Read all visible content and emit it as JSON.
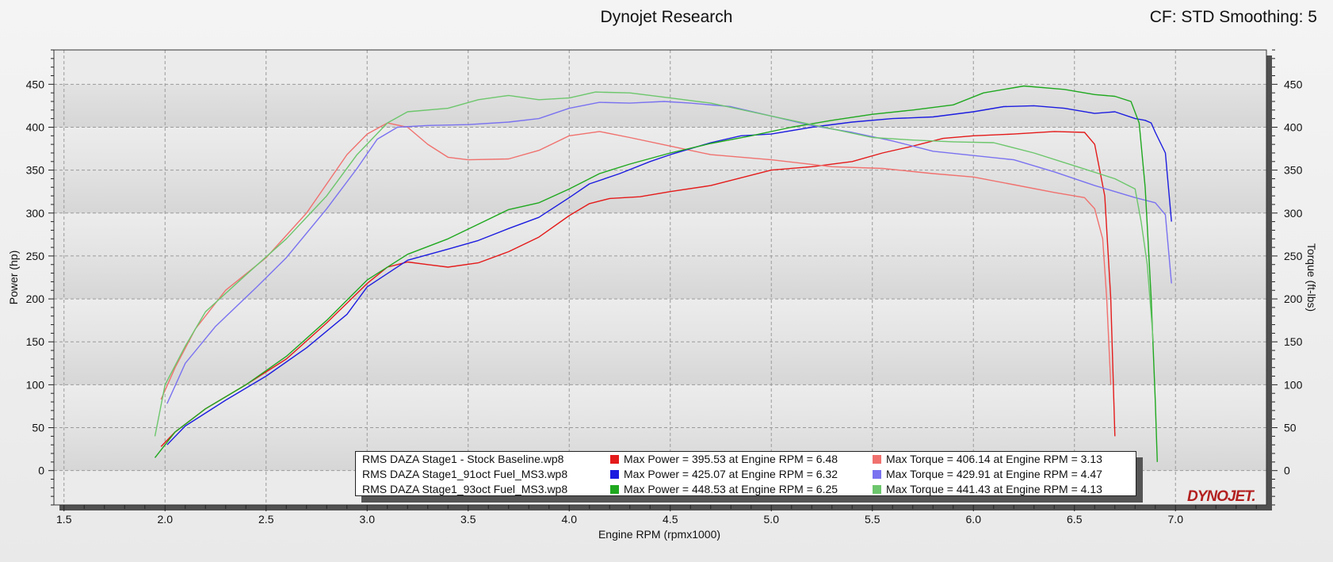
{
  "header": {
    "title": "Dynojet Research",
    "cf_label": "CF: STD Smoothing: 5"
  },
  "logo": "DYNOJET.",
  "colors": {
    "stock_power": "#e41a1a",
    "stock_torque": "#f0716e",
    "oct91_power": "#1c1ce0",
    "oct91_torque": "#7a72f0",
    "oct93_power": "#1fa81f",
    "oct93_torque": "#6cc66c"
  },
  "legend": [
    {
      "file": "RMS DAZA Stage1 - Stock Baseline.wp8",
      "power_text": "Max Power = 395.53 at Engine RPM = 6.48",
      "torque_text": "Max Torque = 406.14 at Engine RPM = 3.13",
      "power_color": "#e41a1a",
      "torque_color": "#f0716e"
    },
    {
      "file": "RMS DAZA Stage1_91oct Fuel_MS3.wp8",
      "power_text": "Max Power = 425.07 at Engine RPM = 6.32",
      "torque_text": "Max Torque = 429.91 at Engine RPM = 4.47",
      "power_color": "#1c1ce0",
      "torque_color": "#7a72f0"
    },
    {
      "file": "RMS DAZA Stage1_93oct Fuel_MS3.wp8",
      "power_text": "Max Power = 448.53 at Engine RPM = 6.25",
      "torque_text": "Max Torque = 441.43 at Engine RPM = 4.13",
      "power_color": "#1fa81f",
      "torque_color": "#6cc66c"
    }
  ],
  "chart_data": {
    "type": "line",
    "xlabel": "Engine RPM (rpmx1000)",
    "ylabel_left": "Power (hp)",
    "ylabel_right": "Torque (ft-lbs)",
    "xlim": [
      1.45,
      7.45
    ],
    "ylim": [
      -40,
      490
    ],
    "x_ticks": [
      1.5,
      2.0,
      2.5,
      3.0,
      3.5,
      4.0,
      4.5,
      5.0,
      5.5,
      6.0,
      6.5,
      7.0
    ],
    "x_tick_labels": [
      "1.5",
      "2.0",
      "2.5",
      "3.0",
      "3.5",
      "4.0",
      "4.5",
      "5.0",
      "5.5",
      "6.0",
      "6.5",
      "7.0"
    ],
    "y_ticks": [
      0,
      50,
      100,
      150,
      200,
      250,
      300,
      350,
      400,
      450
    ],
    "y_tick_labels": [
      "0",
      "50",
      "100",
      "150",
      "200",
      "250",
      "300",
      "350",
      "400",
      "450"
    ],
    "grid": true,
    "legend_position": "bottom-center",
    "series": [
      {
        "name": "RMS DAZA Stage1 - Stock Baseline.wp8",
        "measure": "Power",
        "color": "#e41a1a",
        "points": [
          [
            1.98,
            28
          ],
          [
            2.05,
            45
          ],
          [
            2.2,
            72
          ],
          [
            2.4,
            100
          ],
          [
            2.6,
            130
          ],
          [
            2.8,
            172
          ],
          [
            3.0,
            218
          ],
          [
            3.1,
            237
          ],
          [
            3.2,
            243
          ],
          [
            3.3,
            240
          ],
          [
            3.4,
            237
          ],
          [
            3.55,
            242
          ],
          [
            3.7,
            255
          ],
          [
            3.85,
            272
          ],
          [
            4.0,
            297
          ],
          [
            4.1,
            311
          ],
          [
            4.2,
            317
          ],
          [
            4.35,
            319
          ],
          [
            4.5,
            325
          ],
          [
            4.7,
            332
          ],
          [
            4.9,
            344
          ],
          [
            5.0,
            350
          ],
          [
            5.2,
            354
          ],
          [
            5.4,
            360
          ],
          [
            5.55,
            370
          ],
          [
            5.7,
            378
          ],
          [
            5.85,
            387
          ],
          [
            6.0,
            390
          ],
          [
            6.2,
            392
          ],
          [
            6.4,
            395
          ],
          [
            6.55,
            394
          ],
          [
            6.6,
            380
          ],
          [
            6.65,
            320
          ],
          [
            6.68,
            200
          ],
          [
            6.7,
            40
          ]
        ]
      },
      {
        "name": "RMS DAZA Stage1 - Stock Baseline.wp8",
        "measure": "Torque",
        "color": "#f0716e",
        "points": [
          [
            1.98,
            83
          ],
          [
            2.05,
            120
          ],
          [
            2.15,
            165
          ],
          [
            2.3,
            210
          ],
          [
            2.5,
            248
          ],
          [
            2.7,
            300
          ],
          [
            2.9,
            368
          ],
          [
            3.0,
            392
          ],
          [
            3.1,
            405
          ],
          [
            3.2,
            400
          ],
          [
            3.3,
            380
          ],
          [
            3.4,
            365
          ],
          [
            3.5,
            362
          ],
          [
            3.7,
            363
          ],
          [
            3.85,
            373
          ],
          [
            4.0,
            390
          ],
          [
            4.15,
            395
          ],
          [
            4.3,
            388
          ],
          [
            4.5,
            378
          ],
          [
            4.7,
            368
          ],
          [
            5.0,
            362
          ],
          [
            5.3,
            354
          ],
          [
            5.55,
            352
          ],
          [
            5.8,
            346
          ],
          [
            6.0,
            342
          ],
          [
            6.2,
            333
          ],
          [
            6.4,
            324
          ],
          [
            6.55,
            318
          ],
          [
            6.6,
            305
          ],
          [
            6.64,
            270
          ],
          [
            6.66,
            200
          ],
          [
            6.68,
            100
          ]
        ]
      },
      {
        "name": "RMS DAZA Stage1_91oct Fuel_MS3.wp8",
        "measure": "Power",
        "color": "#1c1ce0",
        "points": [
          [
            2.01,
            30
          ],
          [
            2.1,
            52
          ],
          [
            2.3,
            82
          ],
          [
            2.5,
            110
          ],
          [
            2.7,
            143
          ],
          [
            2.9,
            182
          ],
          [
            3.0,
            214
          ],
          [
            3.2,
            245
          ],
          [
            3.4,
            258
          ],
          [
            3.55,
            268
          ],
          [
            3.7,
            282
          ],
          [
            3.85,
            295
          ],
          [
            4.0,
            318
          ],
          [
            4.1,
            334
          ],
          [
            4.25,
            346
          ],
          [
            4.4,
            360
          ],
          [
            4.5,
            368
          ],
          [
            4.7,
            382
          ],
          [
            4.85,
            390
          ],
          [
            5.0,
            392
          ],
          [
            5.2,
            400
          ],
          [
            5.4,
            406
          ],
          [
            5.6,
            410
          ],
          [
            5.8,
            412
          ],
          [
            6.0,
            418
          ],
          [
            6.15,
            424
          ],
          [
            6.3,
            425
          ],
          [
            6.45,
            422
          ],
          [
            6.6,
            416
          ],
          [
            6.7,
            418
          ],
          [
            6.8,
            410
          ],
          [
            6.85,
            408
          ],
          [
            6.88,
            405
          ],
          [
            6.9,
            394
          ],
          [
            6.95,
            370
          ],
          [
            6.98,
            290
          ]
        ]
      },
      {
        "name": "RMS DAZA Stage1_91oct Fuel_MS3.wp8",
        "measure": "Torque",
        "color": "#7a72f0",
        "points": [
          [
            2.01,
            78
          ],
          [
            2.1,
            125
          ],
          [
            2.25,
            168
          ],
          [
            2.45,
            213
          ],
          [
            2.6,
            248
          ],
          [
            2.8,
            305
          ],
          [
            2.95,
            352
          ],
          [
            3.05,
            386
          ],
          [
            3.15,
            400
          ],
          [
            3.3,
            402
          ],
          [
            3.5,
            403
          ],
          [
            3.7,
            406
          ],
          [
            3.85,
            410
          ],
          [
            4.0,
            422
          ],
          [
            4.15,
            429
          ],
          [
            4.3,
            428
          ],
          [
            4.47,
            430
          ],
          [
            4.6,
            428
          ],
          [
            4.8,
            424
          ],
          [
            5.0,
            413
          ],
          [
            5.2,
            402
          ],
          [
            5.4,
            394
          ],
          [
            5.6,
            384
          ],
          [
            5.8,
            372
          ],
          [
            6.0,
            367
          ],
          [
            6.2,
            362
          ],
          [
            6.4,
            348
          ],
          [
            6.6,
            332
          ],
          [
            6.8,
            318
          ],
          [
            6.9,
            312
          ],
          [
            6.95,
            298
          ],
          [
            6.98,
            218
          ]
        ]
      },
      {
        "name": "RMS DAZA Stage1_93oct Fuel_MS3.wp8",
        "measure": "Power",
        "color": "#1fa81f",
        "points": [
          [
            1.95,
            15
          ],
          [
            2.05,
            45
          ],
          [
            2.2,
            72
          ],
          [
            2.4,
            100
          ],
          [
            2.6,
            133
          ],
          [
            2.8,
            175
          ],
          [
            3.0,
            222
          ],
          [
            3.2,
            252
          ],
          [
            3.4,
            270
          ],
          [
            3.55,
            287
          ],
          [
            3.7,
            304
          ],
          [
            3.85,
            312
          ],
          [
            4.0,
            328
          ],
          [
            4.15,
            346
          ],
          [
            4.3,
            357
          ],
          [
            4.5,
            370
          ],
          [
            4.7,
            381
          ],
          [
            4.9,
            390
          ],
          [
            5.1,
            400
          ],
          [
            5.3,
            408
          ],
          [
            5.5,
            415
          ],
          [
            5.7,
            420
          ],
          [
            5.9,
            426
          ],
          [
            6.05,
            440
          ],
          [
            6.25,
            448
          ],
          [
            6.45,
            444
          ],
          [
            6.6,
            438
          ],
          [
            6.7,
            436
          ],
          [
            6.78,
            430
          ],
          [
            6.82,
            405
          ],
          [
            6.85,
            330
          ],
          [
            6.88,
            200
          ],
          [
            6.9,
            80
          ],
          [
            6.91,
            10
          ]
        ]
      },
      {
        "name": "RMS DAZA Stage1_93oct Fuel_MS3.wp8",
        "measure": "Torque",
        "color": "#6cc66c",
        "points": [
          [
            1.95,
            40
          ],
          [
            2.0,
            100
          ],
          [
            2.1,
            145
          ],
          [
            2.2,
            185
          ],
          [
            2.4,
            228
          ],
          [
            2.6,
            270
          ],
          [
            2.8,
            320
          ],
          [
            2.95,
            368
          ],
          [
            3.1,
            405
          ],
          [
            3.2,
            418
          ],
          [
            3.4,
            422
          ],
          [
            3.55,
            432
          ],
          [
            3.7,
            437
          ],
          [
            3.85,
            432
          ],
          [
            4.0,
            434
          ],
          [
            4.13,
            441
          ],
          [
            4.3,
            440
          ],
          [
            4.5,
            434
          ],
          [
            4.7,
            428
          ],
          [
            4.9,
            418
          ],
          [
            5.1,
            408
          ],
          [
            5.3,
            398
          ],
          [
            5.5,
            388
          ],
          [
            5.7,
            385
          ],
          [
            5.9,
            383
          ],
          [
            6.1,
            382
          ],
          [
            6.3,
            370
          ],
          [
            6.5,
            355
          ],
          [
            6.7,
            340
          ],
          [
            6.8,
            328
          ],
          [
            6.83,
            290
          ],
          [
            6.86,
            240
          ],
          [
            6.89,
            150
          ]
        ]
      }
    ]
  }
}
